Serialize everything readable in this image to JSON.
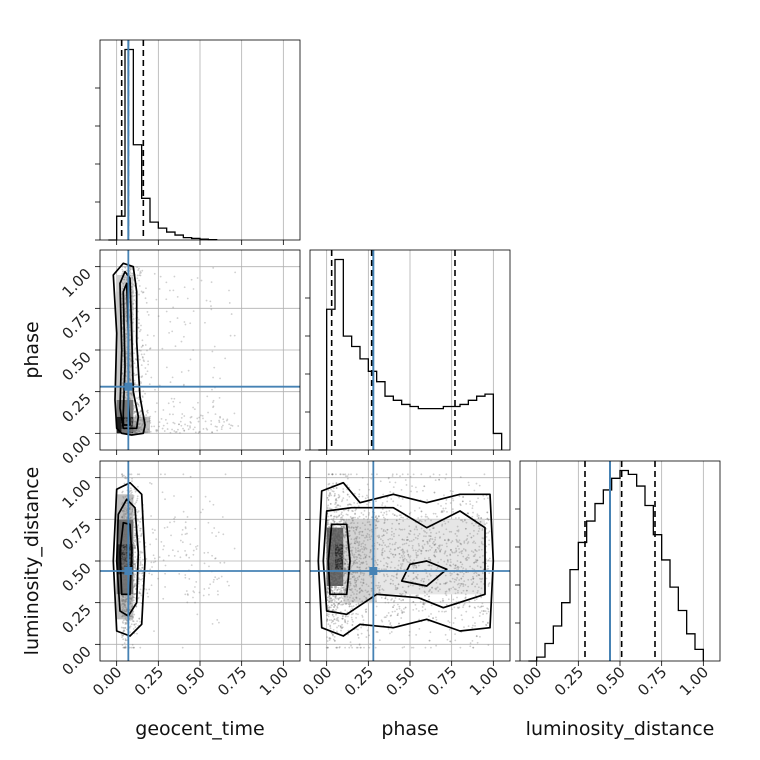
{
  "chart_data": {
    "type": "corner",
    "parameters": [
      "geocent_time",
      "phase",
      "luminosity_distance"
    ],
    "axis_labels": {
      "geocent_time": "geocent_time",
      "phase": "phase",
      "luminosity_distance": "luminosity_distance"
    },
    "range": [
      0,
      1
    ],
    "ticks": [
      "0.00",
      "0.25",
      "0.50",
      "0.75",
      "1.00"
    ],
    "tick_values": [
      0,
      0.25,
      0.5,
      0.75,
      1.0
    ],
    "grid": true,
    "truths": {
      "geocent_time": 0.07,
      "phase": 0.28,
      "luminosity_distance": 0.44
    },
    "truth_color": "#4682b4",
    "quantiles": {
      "geocent_time": [
        0.03,
        0.07,
        0.16
      ],
      "phase": [
        0.03,
        0.27,
        0.77
      ],
      "luminosity_distance": [
        0.29,
        0.51,
        0.71
      ]
    },
    "histograms": {
      "geocent_time": {
        "bin_edges": [
          -0.05,
          0.0,
          0.05,
          0.1,
          0.15,
          0.2,
          0.25,
          0.3,
          0.35,
          0.4,
          0.45,
          0.5,
          0.55,
          0.6
        ],
        "counts": [
          0.0,
          0.12,
          0.96,
          0.48,
          0.21,
          0.09,
          0.06,
          0.04,
          0.025,
          0.012,
          0.008,
          0.004,
          0.002
        ]
      },
      "phase": {
        "bin_edges": [
          -0.05,
          0.0,
          0.05,
          0.1,
          0.15,
          0.2,
          0.25,
          0.3,
          0.35,
          0.4,
          0.45,
          0.5,
          0.55,
          0.6,
          0.65,
          0.7,
          0.75,
          0.8,
          0.85,
          0.9,
          0.95,
          1.0,
          1.05
        ],
        "counts": [
          0,
          0.68,
          0.92,
          0.55,
          0.5,
          0.44,
          0.38,
          0.33,
          0.26,
          0.24,
          0.22,
          0.21,
          0.2,
          0.2,
          0.2,
          0.21,
          0.21,
          0.22,
          0.24,
          0.26,
          0.27,
          0.08
        ]
      },
      "luminosity_distance": {
        "bin_edges": [
          -0.05,
          0.0,
          0.05,
          0.1,
          0.15,
          0.2,
          0.25,
          0.3,
          0.35,
          0.4,
          0.45,
          0.5,
          0.55,
          0.6,
          0.65,
          0.7,
          0.75,
          0.8,
          0.85,
          0.9,
          0.95,
          1.0
        ],
        "counts": [
          0,
          0.02,
          0.09,
          0.18,
          0.3,
          0.47,
          0.61,
          0.72,
          0.81,
          0.88,
          0.94,
          0.98,
          0.96,
          0.9,
          0.8,
          0.65,
          0.52,
          0.38,
          0.26,
          0.14,
          0.06
        ]
      }
    },
    "joint_density": {
      "phase_vs_geocent_time": {
        "center": [
          0.06,
          0.06
        ],
        "description_free": true
      },
      "luminosity_distance_vs_geocent_time": {
        "center": [
          0.06,
          0.5
        ]
      },
      "luminosity_distance_vs_phase": {
        "center": [
          0.05,
          0.52
        ]
      }
    }
  }
}
